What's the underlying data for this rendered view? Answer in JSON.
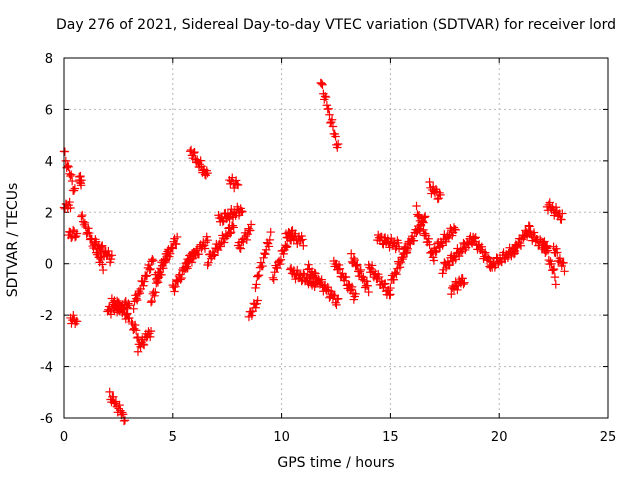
{
  "chart_data": {
    "type": "scatter",
    "title": "Day 276 of 2021, Sidereal Day-to-day VTEC variation (SDTVAR) for receiver lord",
    "xlabel": "GPS time / hours",
    "ylabel": "SDTVAR / TECUs",
    "xlim": [
      0,
      25
    ],
    "ylim": [
      -6,
      8
    ],
    "x_ticks": [
      0,
      5,
      10,
      15,
      20,
      25
    ],
    "y_ticks": [
      -6,
      -4,
      -2,
      0,
      2,
      4,
      6,
      8
    ],
    "x_tick_labels": [
      "0",
      "5",
      "10",
      "15",
      "20",
      "25"
    ],
    "y_tick_labels": [
      "-6",
      "-4",
      "-2",
      "0",
      "2",
      "4",
      "6",
      "8"
    ],
    "grid": true,
    "marker": "+",
    "color": "#ff0000",
    "series": [
      {
        "name": "SDTVAR",
        "clusters": [
          {
            "x": [
              0.0,
              0.5
            ],
            "y": [
              4.3,
              2.8
            ]
          },
          {
            "x": [
              0.2,
              0.6
            ],
            "y": [
              1.2,
              1.1
            ]
          },
          {
            "x": [
              0.0,
              0.3
            ],
            "y": [
              2.3,
              2.2
            ]
          },
          {
            "x": [
              0.3,
              0.6
            ],
            "y": [
              -2.1,
              -2.3
            ]
          },
          {
            "x": [
              0.7,
              0.8
            ],
            "y": [
              3.3,
              3.2
            ]
          },
          {
            "x": [
              0.8,
              1.8
            ],
            "y": [
              1.8,
              -0.1
            ]
          },
          {
            "x": [
              1.4,
              2.2
            ],
            "y": [
              0.8,
              0.2
            ]
          },
          {
            "x": [
              2.0,
              3.0
            ],
            "y": [
              -1.8,
              -1.6
            ]
          },
          {
            "x": [
              2.2,
              3.0
            ],
            "y": [
              -1.4,
              -2.1
            ]
          },
          {
            "x": [
              2.1,
              2.8
            ],
            "y": [
              -5.1,
              -6.0
            ]
          },
          {
            "x": [
              3.1,
              3.4
            ],
            "y": [
              -2.3,
              -2.8
            ]
          },
          {
            "x": [
              3.4,
              4.0
            ],
            "y": [
              -3.3,
              -2.6
            ]
          },
          {
            "x": [
              3.2,
              4.1
            ],
            "y": [
              -1.6,
              0.2
            ]
          },
          {
            "x": [
              4.0,
              4.8
            ],
            "y": [
              -1.5,
              0.6
            ]
          },
          {
            "x": [
              4.2,
              5.2
            ],
            "y": [
              -0.6,
              1.0
            ]
          },
          {
            "x": [
              5.0,
              6.0
            ],
            "y": [
              -1.0,
              0.5
            ]
          },
          {
            "x": [
              5.8,
              6.6
            ],
            "y": [
              4.4,
              3.4
            ]
          },
          {
            "x": [
              5.6,
              6.6
            ],
            "y": [
              0.0,
              0.9
            ]
          },
          {
            "x": [
              6.6,
              7.8
            ],
            "y": [
              0.1,
              1.5
            ]
          },
          {
            "x": [
              7.6,
              8.0
            ],
            "y": [
              3.2,
              3.1
            ]
          },
          {
            "x": [
              7.1,
              8.2
            ],
            "y": [
              1.7,
              2.1
            ]
          },
          {
            "x": [
              8.0,
              8.6
            ],
            "y": [
              0.6,
              1.4
            ]
          },
          {
            "x": [
              8.5,
              8.9
            ],
            "y": [
              -2.0,
              -1.5
            ]
          },
          {
            "x": [
              8.8,
              9.5
            ],
            "y": [
              -0.8,
              1.1
            ]
          },
          {
            "x": [
              9.6,
              10.5
            ],
            "y": [
              -0.5,
              1.3
            ]
          },
          {
            "x": [
              10.2,
              11.0
            ],
            "y": [
              1.1,
              0.9
            ]
          },
          {
            "x": [
              10.4,
              11.6
            ],
            "y": [
              -0.3,
              -0.8
            ]
          },
          {
            "x": [
              11.2,
              12.6
            ],
            "y": [
              -0.2,
              -1.5
            ]
          },
          {
            "x": [
              11.8,
              12.6
            ],
            "y": [
              7.1,
              4.5
            ]
          },
          {
            "x": [
              12.4,
              13.4
            ],
            "y": [
              0.1,
              -1.3
            ]
          },
          {
            "x": [
              13.2,
              14.0
            ],
            "y": [
              0.3,
              -1.0
            ]
          },
          {
            "x": [
              14.0,
              15.0
            ],
            "y": [
              -0.1,
              -1.2
            ]
          },
          {
            "x": [
              14.4,
              15.4
            ],
            "y": [
              1.0,
              0.7
            ]
          },
          {
            "x": [
              15.0,
              15.8
            ],
            "y": [
              -0.8,
              0.7
            ]
          },
          {
            "x": [
              15.6,
              16.6
            ],
            "y": [
              0.4,
              1.8
            ]
          },
          {
            "x": [
              16.2,
              17.0
            ],
            "y": [
              2.1,
              0.2
            ]
          },
          {
            "x": [
              16.8,
              17.3
            ],
            "y": [
              3.0,
              2.6
            ]
          },
          {
            "x": [
              17.0,
              18.0
            ],
            "y": [
              0.5,
              1.4
            ]
          },
          {
            "x": [
              17.8,
              18.4
            ],
            "y": [
              -1.0,
              -0.6
            ]
          },
          {
            "x": [
              17.4,
              18.8
            ],
            "y": [
              -0.2,
              1.0
            ]
          },
          {
            "x": [
              18.8,
              19.6
            ],
            "y": [
              1.0,
              0.0
            ]
          },
          {
            "x": [
              19.6,
              20.8
            ],
            "y": [
              -0.1,
              0.6
            ]
          },
          {
            "x": [
              20.6,
              21.4
            ],
            "y": [
              0.4,
              1.4
            ]
          },
          {
            "x": [
              21.4,
              22.2
            ],
            "y": [
              1.2,
              0.5
            ]
          },
          {
            "x": [
              22.0,
              22.6
            ],
            "y": [
              1.0,
              -0.6
            ]
          },
          {
            "x": [
              22.2,
              22.9
            ],
            "y": [
              2.3,
              1.8
            ]
          },
          {
            "x": [
              22.5,
              23.0
            ],
            "y": [
              0.6,
              -0.2
            ]
          }
        ]
      }
    ]
  }
}
